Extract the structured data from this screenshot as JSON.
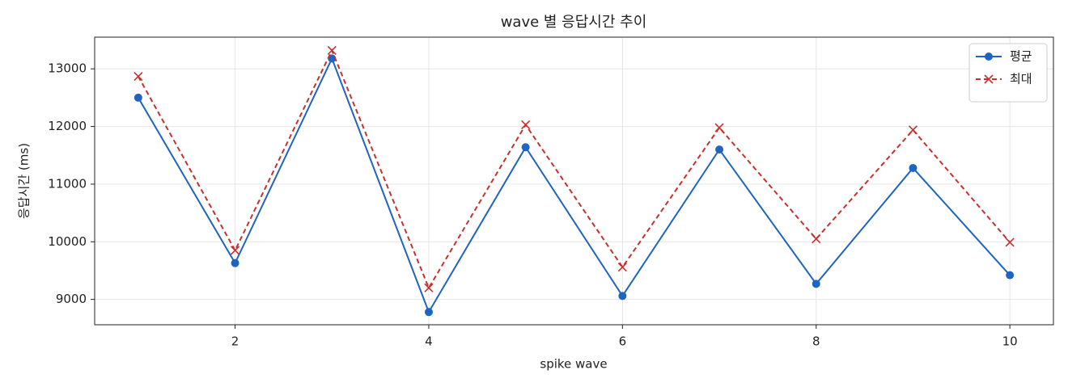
{
  "chart_data": {
    "type": "line",
    "title": "wave 별 응답시간 추이",
    "x_label": "spike wave",
    "y_label": "응답시간 (ms)",
    "x": [
      1,
      2,
      3,
      4,
      5,
      6,
      7,
      8,
      9,
      10
    ],
    "series": [
      {
        "name": "평균",
        "color": "#1f64c0",
        "marker": "circle",
        "dashed": false,
        "values": [
          12500,
          9630,
          13180,
          8780,
          11640,
          9060,
          11600,
          9270,
          11280,
          9420
        ]
      },
      {
        "name": "최대",
        "color": "#c8302e",
        "marker": "x",
        "dashed": true,
        "values": [
          12870,
          9850,
          13320,
          9200,
          12030,
          9560,
          11980,
          10050,
          11940,
          9990
        ]
      }
    ],
    "xlim": [
      0.55,
      10.45
    ],
    "xticks": [
      2,
      4,
      6,
      8,
      10
    ],
    "ylim": [
      8560,
      13550
    ],
    "yticks": [
      9000,
      10000,
      11000,
      12000,
      13000
    ],
    "grid": true,
    "legend": "upper-right"
  }
}
